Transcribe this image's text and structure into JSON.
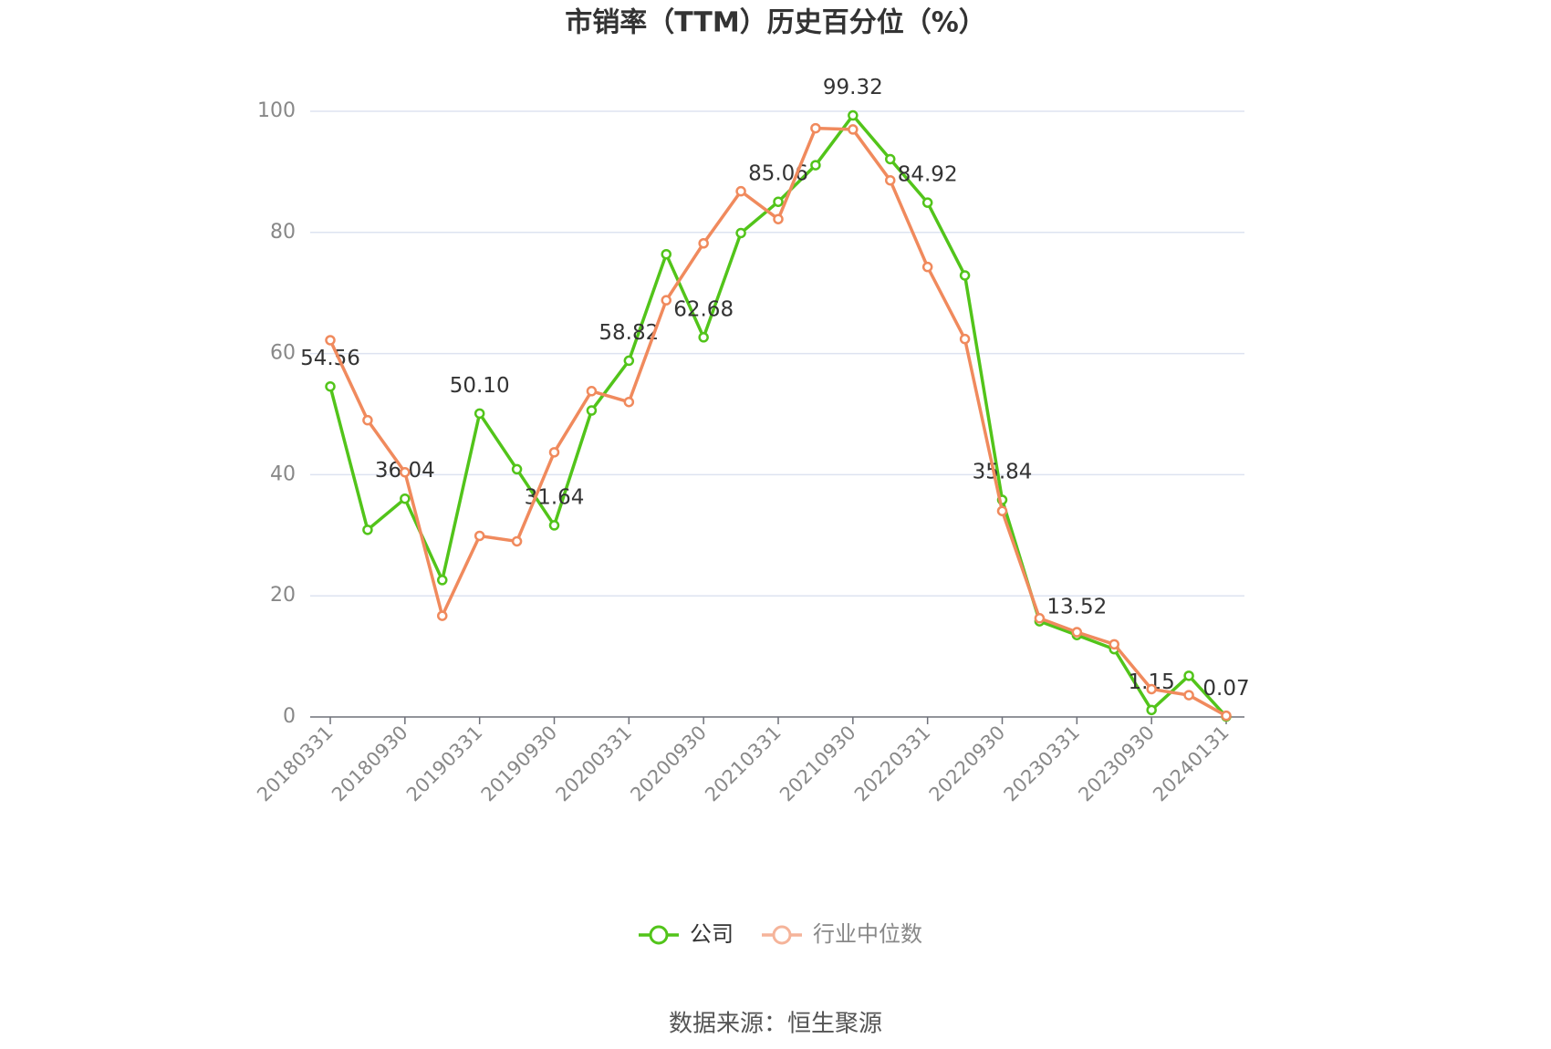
{
  "chart_data": {
    "type": "line",
    "title": "市销率（TTM）历史百分位（%）",
    "source": "数据来源：恒生聚源",
    "categories": [
      "20180331",
      null,
      "20180930",
      null,
      "20190331",
      null,
      "20190930",
      null,
      "20200331",
      null,
      "20200930",
      null,
      "20210331",
      null,
      "20210930",
      null,
      "20220331",
      null,
      "20220930",
      null,
      "20230331",
      null,
      "20230930",
      null,
      "20240131"
    ],
    "series": [
      {
        "name": "公司",
        "color": "#52c41a",
        "values": [
          54.56,
          30.9,
          36.04,
          22.6,
          50.1,
          40.9,
          31.64,
          50.6,
          58.82,
          76.4,
          62.68,
          79.9,
          85.06,
          91.1,
          99.32,
          92.1,
          84.92,
          72.9,
          35.84,
          15.8,
          13.52,
          11.2,
          1.15,
          6.8,
          0.07
        ],
        "value_labels": [
          "54.56",
          null,
          "36.04",
          null,
          "50.10",
          null,
          "31.64",
          null,
          "58.82",
          null,
          "62.68",
          null,
          "85.06",
          null,
          "99.32",
          null,
          "84.92",
          null,
          "35.84",
          null,
          "13.52",
          null,
          "1.15",
          null,
          "0.07"
        ]
      },
      {
        "name": "行业中位数",
        "color": "#f08a5d",
        "values": [
          62.2,
          49.0,
          40.4,
          16.7,
          29.9,
          29.0,
          43.7,
          53.8,
          52.0,
          68.8,
          78.2,
          86.8,
          82.2,
          97.2,
          97.0,
          88.6,
          74.3,
          62.4,
          34.0,
          16.3,
          14.0,
          12.0,
          4.6,
          3.6,
          0.2
        ]
      }
    ],
    "ylim": [
      0,
      100
    ],
    "yticks": [
      0,
      20,
      40,
      60,
      80,
      100
    ],
    "grid": true
  }
}
